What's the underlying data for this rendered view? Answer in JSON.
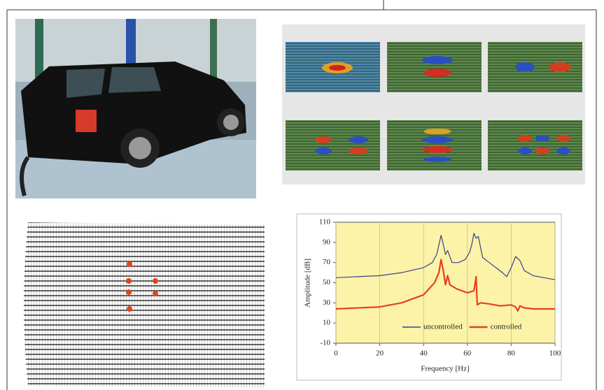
{
  "chart_data": {
    "type": "line",
    "xlabel": "Frequency [Hz]",
    "ylabel": "Amplitude [dB]",
    "xlim": [
      0,
      100
    ],
    "xticks": [
      0,
      20,
      40,
      60,
      80,
      100
    ],
    "ylim": [
      -10,
      110
    ],
    "yticks": [
      -10,
      10,
      30,
      50,
      70,
      90,
      110
    ],
    "grid": true,
    "legend": "bottom",
    "series": [
      {
        "name": "uncontrolled",
        "color": "#3a3f8f",
        "x": [
          0,
          20,
          30,
          40,
          44,
          46,
          48,
          49,
          50,
          51,
          53,
          56,
          59,
          61,
          62,
          63,
          64,
          65,
          66,
          67,
          70,
          73,
          76,
          78,
          80,
          82,
          84,
          86,
          90,
          95,
          100
        ],
        "values": [
          55,
          57,
          60,
          65,
          70,
          78,
          97,
          88,
          78,
          82,
          70,
          70,
          73,
          80,
          88,
          99,
          94,
          96,
          85,
          75,
          70,
          65,
          60,
          56,
          65,
          76,
          72,
          62,
          57,
          55,
          53
        ]
      },
      {
        "name": "controlled",
        "color": "#e8401c",
        "x": [
          0,
          20,
          30,
          40,
          45,
          47,
          48,
          49,
          50,
          51,
          52,
          55,
          60,
          63,
          64,
          64.5,
          66,
          70,
          75,
          80,
          82,
          83,
          84,
          86,
          90,
          100
        ],
        "values": [
          24,
          26,
          30,
          38,
          50,
          60,
          73,
          62,
          48,
          57,
          48,
          44,
          40,
          42,
          56,
          28,
          30,
          29,
          27,
          28,
          26,
          22,
          27,
          25,
          24,
          24
        ]
      }
    ]
  }
}
